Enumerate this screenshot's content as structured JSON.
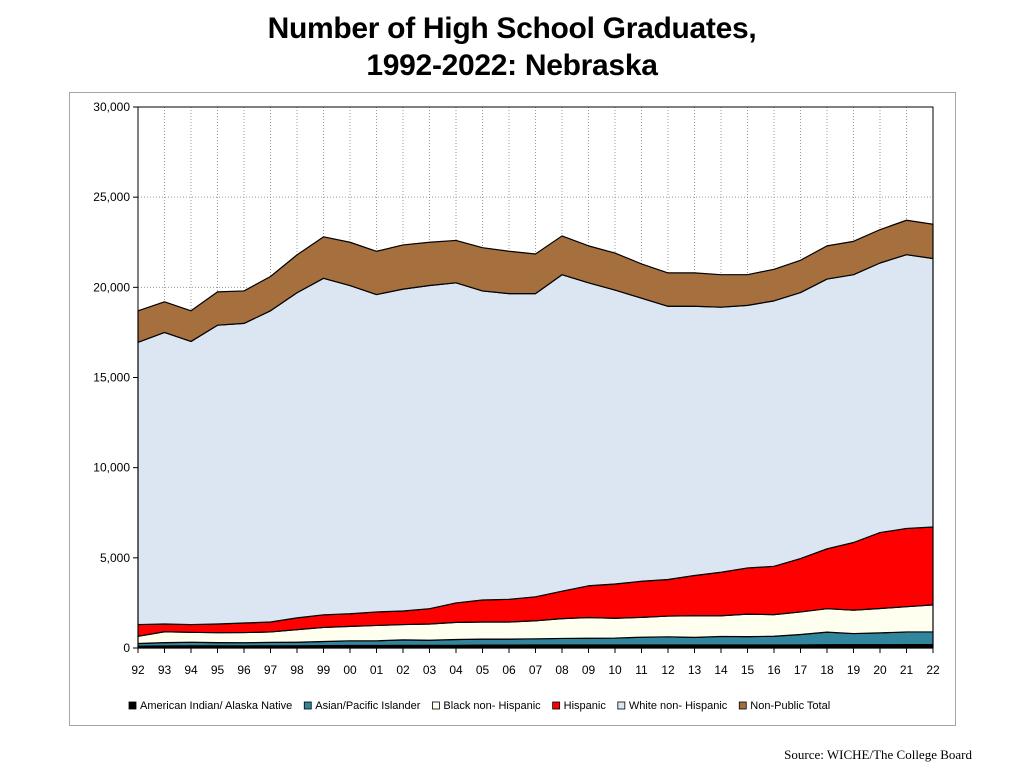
{
  "title_line1": "Number of High School Graduates,",
  "title_line2": "1992-2022:  Nebraska",
  "source": "Source: WICHE/The College Board",
  "chart_data": {
    "type": "area",
    "stacked": true,
    "categories": [
      "92",
      "93",
      "94",
      "95",
      "96",
      "97",
      "98",
      "99",
      "00",
      "01",
      "02",
      "03",
      "04",
      "05",
      "06",
      "07",
      "08",
      "09",
      "10",
      "11",
      "12",
      "13",
      "14",
      "15",
      "16",
      "17",
      "18",
      "19",
      "20",
      "21",
      "22"
    ],
    "ylim": [
      0,
      30000
    ],
    "yticks": [
      0,
      5000,
      10000,
      15000,
      20000,
      25000,
      30000
    ],
    "ytick_labels": [
      "0",
      "5,000",
      "10,000",
      "15,000",
      "20,000",
      "25,000",
      "30,000"
    ],
    "grid": "vertical dotted",
    "legend_position": "bottom",
    "series": [
      {
        "name": "American Indian/  Alaska Native",
        "color": "#000000",
        "values": [
          100,
          110,
          120,
          120,
          115,
          120,
          120,
          130,
          140,
          140,
          150,
          150,
          150,
          160,
          160,
          170,
          170,
          170,
          170,
          170,
          170,
          170,
          170,
          170,
          170,
          170,
          180,
          180,
          180,
          190,
          190
        ]
      },
      {
        "name": "Asian/Pacific Islander",
        "color": "#31859C",
        "values": [
          150,
          190,
          200,
          180,
          180,
          190,
          200,
          230,
          260,
          260,
          300,
          280,
          320,
          330,
          330,
          340,
          360,
          370,
          380,
          430,
          450,
          420,
          470,
          460,
          480,
          580,
          700,
          620,
          660,
          700,
          700
        ]
      },
      {
        "name": "Black non-  Hispanic",
        "color": "#FFFFF0",
        "values": [
          400,
          600,
          550,
          550,
          560,
          580,
          700,
          780,
          800,
          850,
          850,
          900,
          950,
          950,
          950,
          1000,
          1100,
          1150,
          1100,
          1100,
          1150,
          1200,
          1150,
          1250,
          1200,
          1250,
          1300,
          1300,
          1350,
          1400,
          1500
        ]
      },
      {
        "name": "Hispanic",
        "color": "#FF0000",
        "values": [
          650,
          430,
          430,
          480,
          530,
          550,
          650,
          700,
          700,
          750,
          750,
          850,
          1080,
          1220,
          1260,
          1330,
          1520,
          1760,
          1900,
          2000,
          2030,
          2230,
          2410,
          2560,
          2680,
          2960,
          3320,
          3750,
          4210,
          4340,
          4320
        ]
      },
      {
        "name": "White non-  Hispanic",
        "color": "#DCE6F2",
        "values": [
          15650,
          16170,
          15700,
          16570,
          16615,
          17260,
          18030,
          18660,
          18200,
          17600,
          17850,
          17920,
          17750,
          17140,
          16950,
          16810,
          17550,
          16800,
          16300,
          15700,
          15150,
          14930,
          14700,
          14560,
          14720,
          14750,
          14960,
          14850,
          14950,
          15180,
          14890
        ]
      },
      {
        "name": "Non-Public Total",
        "color": "#A5703E",
        "values": [
          1750,
          1700,
          1700,
          1850,
          1800,
          1900,
          2100,
          2300,
          2400,
          2400,
          2450,
          2400,
          2350,
          2400,
          2350,
          2200,
          2150,
          2050,
          2050,
          1900,
          1850,
          1850,
          1800,
          1700,
          1750,
          1790,
          1840,
          1850,
          1850,
          1910,
          1900
        ]
      }
    ]
  }
}
